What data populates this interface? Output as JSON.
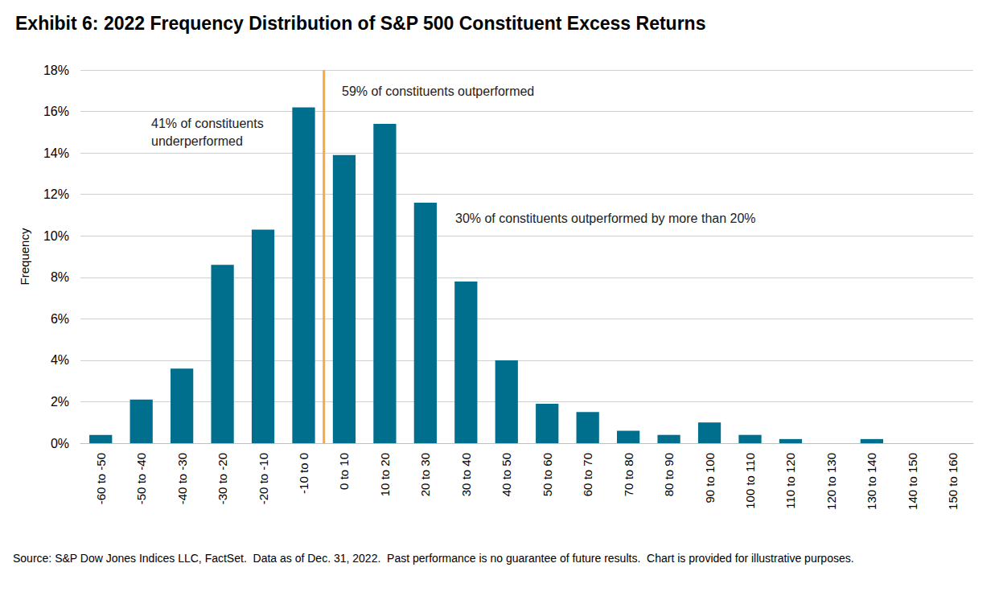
{
  "chart_data": {
    "type": "bar",
    "title": "Exhibit 6: 2022 Frequency Distribution of S&P 500 Constituent Excess Returns",
    "y_label": "Frequency",
    "categories": [
      "-60 to -50",
      "-50 to -40",
      "-40 to -30",
      "-30 to -20",
      "-20 to -10",
      "-10 to 0",
      "0 to 10",
      "10 to 20",
      "20 to 30",
      "30 to 40",
      "40 to 50",
      "50 to 60",
      "60 to 70",
      "70 to 80",
      "80 to 90",
      "90 to 100",
      "100 to 110",
      "110 to 120",
      "120 to 130",
      "130 to 140",
      "140 to 150",
      "150 to 160"
    ],
    "bins": [
      -60,
      -50,
      -40,
      -30,
      -20,
      -10,
      0,
      10,
      20,
      30,
      40,
      50,
      60,
      70,
      80,
      90,
      100,
      110,
      120,
      130,
      140,
      150,
      160
    ],
    "values": [
      0.4,
      2.1,
      3.6,
      8.6,
      10.3,
      16.2,
      13.9,
      15.4,
      11.6,
      7.8,
      4.0,
      1.9,
      1.5,
      0.6,
      0.4,
      1.0,
      0.4,
      0.2,
      0,
      0.2,
      0,
      0
    ],
    "color": "#006f8e",
    "ylim": [
      0,
      18
    ],
    "yticks": [
      {
        "value": 0,
        "label": "0%"
      },
      {
        "value": 2,
        "label": "2%"
      },
      {
        "value": 4,
        "label": "4%"
      },
      {
        "value": 6,
        "label": "6%"
      },
      {
        "value": 8,
        "label": "8%"
      },
      {
        "value": 10,
        "label": "10%"
      },
      {
        "value": 12,
        "label": "12%"
      },
      {
        "value": 14,
        "label": "14%"
      },
      {
        "value": 16,
        "label": "16%"
      },
      {
        "value": 18,
        "label": "18%"
      }
    ],
    "grid": true,
    "reference_line": {
      "x": 0,
      "color": "#f5a742"
    },
    "annotations": [
      "59% of constituents outperformed",
      "41% of constituents\nunderperformed",
      "30% of constituents outperformed by more than 20%"
    ],
    "note": "Source: S&P Dow Jones Indices LLC, FactSet.  Data as of Dec. 31, 2022.  Past performance is no guarantee of future results.  Chart is provided for illustrative purposes."
  }
}
